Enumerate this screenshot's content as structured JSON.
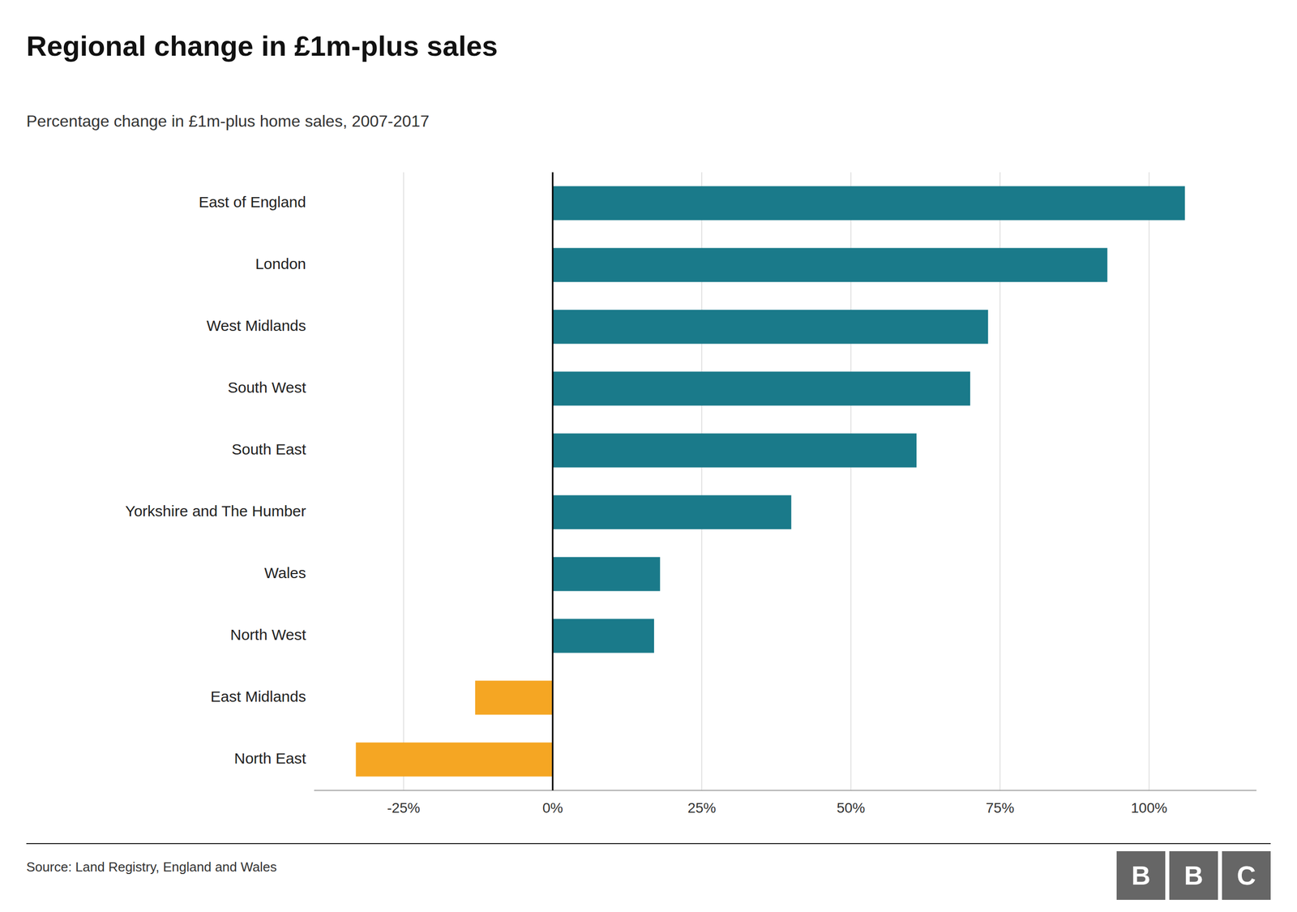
{
  "chart_data": {
    "type": "bar",
    "orientation": "horizontal",
    "title": "Regional change in £1m-plus sales",
    "subtitle": "Percentage change in £1m-plus home sales, 2007-2017",
    "source": "Source: Land Registry, England and Wales",
    "logo": "BBC",
    "categories": [
      "East of England",
      "London",
      "West Midlands",
      "South West",
      "South East",
      "Yorkshire and The Humber",
      "Wales",
      "North West",
      "East Midlands",
      "North East"
    ],
    "values": [
      106,
      93,
      73,
      70,
      61,
      40,
      18,
      17,
      -13,
      -33
    ],
    "colors": [
      "#1a7a8a",
      "#1a7a8a",
      "#1a7a8a",
      "#1a7a8a",
      "#1a7a8a",
      "#1a7a8a",
      "#1a7a8a",
      "#1a7a8a",
      "#f5a623",
      "#f5a623"
    ],
    "xlim": [
      -40,
      118
    ],
    "xticks": [
      {
        "value": -25,
        "label": "-25%"
      },
      {
        "value": 0,
        "label": "0%"
      },
      {
        "value": 25,
        "label": "25%"
      },
      {
        "value": 50,
        "label": "50%"
      },
      {
        "value": 75,
        "label": "75%"
      },
      {
        "value": 100,
        "label": "100%"
      }
    ],
    "grid": true
  }
}
